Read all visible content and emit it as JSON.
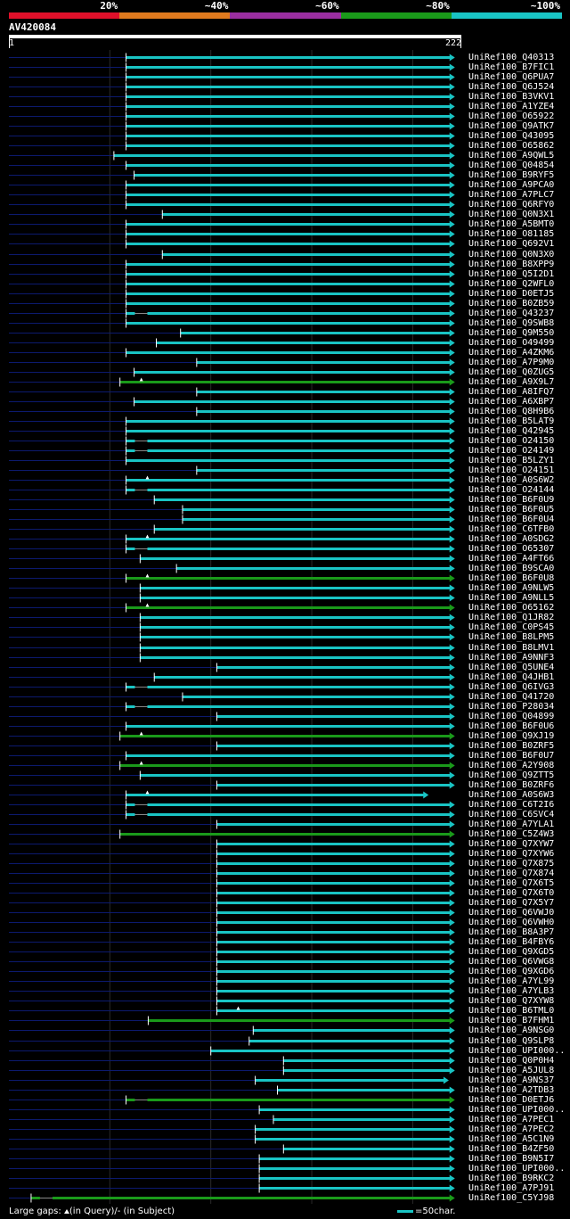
{
  "legend": {
    "labels": [
      "20%",
      "~40%",
      "~60%",
      "~80%",
      "~100%"
    ],
    "colors": [
      "#e0102a",
      "#e07a1e",
      "#9a2ea0",
      "#1a9a1a",
      "#19c4c4"
    ]
  },
  "query": {
    "id": "AV420084",
    "start": "1",
    "end": "222"
  },
  "footer": {
    "gaps_prefix": "Large gaps: ",
    "gaps_query": "(in Query)/",
    "gaps_dash": "-",
    "gaps_subject": " (in Subject)",
    "scale_label": "=50char."
  },
  "colors": {
    "cyan": "#19c4c4",
    "green": "#1a9a1a",
    "navy": "#0c1a6e",
    "background": "#000000"
  },
  "hits": [
    {
      "name": "UniRef100_Q40313",
      "start": 59,
      "end": 221,
      "color": "cyan"
    },
    {
      "name": "UniRef100_B7FIC1",
      "start": 59,
      "end": 221,
      "color": "cyan"
    },
    {
      "name": "UniRef100_Q6PUA7",
      "start": 59,
      "end": 221,
      "color": "cyan"
    },
    {
      "name": "UniRef100_Q6J524",
      "start": 59,
      "end": 221,
      "color": "cyan"
    },
    {
      "name": "UniRef100_B3VKV1",
      "start": 59,
      "end": 221,
      "color": "cyan"
    },
    {
      "name": "UniRef100_A1YZE4",
      "start": 59,
      "end": 221,
      "color": "cyan"
    },
    {
      "name": "UniRef100_O65922",
      "start": 59,
      "end": 221,
      "color": "cyan"
    },
    {
      "name": "UniRef100_Q9ATK7",
      "start": 59,
      "end": 221,
      "color": "cyan"
    },
    {
      "name": "UniRef100_Q43095",
      "start": 59,
      "end": 221,
      "color": "cyan"
    },
    {
      "name": "UniRef100_O65862",
      "start": 59,
      "end": 221,
      "color": "cyan"
    },
    {
      "name": "UniRef100_A9QWL5",
      "start": 53,
      "end": 221,
      "color": "cyan"
    },
    {
      "name": "UniRef100_Q04854",
      "start": 59,
      "end": 221,
      "color": "cyan"
    },
    {
      "name": "UniRef100_B9RYF5",
      "start": 63,
      "end": 221,
      "color": "cyan"
    },
    {
      "name": "UniRef100_A9PCA0",
      "start": 59,
      "end": 221,
      "color": "cyan"
    },
    {
      "name": "UniRef100_A7PLC7",
      "start": 59,
      "end": 221,
      "color": "cyan"
    },
    {
      "name": "UniRef100_Q6RFY0",
      "start": 59,
      "end": 221,
      "color": "cyan"
    },
    {
      "name": "UniRef100_Q0N3X1",
      "start": 77,
      "end": 221,
      "color": "cyan"
    },
    {
      "name": "UniRef100_A5BMT0",
      "start": 59,
      "end": 221,
      "color": "cyan"
    },
    {
      "name": "UniRef100_O81185",
      "start": 59,
      "end": 221,
      "color": "cyan"
    },
    {
      "name": "UniRef100_Q692V1",
      "start": 59,
      "end": 221,
      "color": "cyan"
    },
    {
      "name": "UniRef100_Q0N3X0",
      "start": 77,
      "end": 221,
      "color": "cyan"
    },
    {
      "name": "UniRef100_B8XPP9",
      "start": 59,
      "end": 221,
      "color": "cyan"
    },
    {
      "name": "UniRef100_Q5I2D1",
      "start": 59,
      "end": 221,
      "color": "cyan"
    },
    {
      "name": "UniRef100_Q2WFL0",
      "start": 59,
      "end": 221,
      "color": "cyan"
    },
    {
      "name": "UniRef100_D0ETJ5",
      "start": 59,
      "end": 221,
      "color": "cyan"
    },
    {
      "name": "UniRef100_B0ZB59",
      "start": 59,
      "end": 221,
      "color": "cyan"
    },
    {
      "name": "UniRef100_Q43237",
      "start": 59,
      "end": 221,
      "color": "cyan",
      "gap": true
    },
    {
      "name": "UniRef100_Q9SWB8",
      "start": 59,
      "end": 221,
      "color": "cyan"
    },
    {
      "name": "UniRef100_Q9M550",
      "start": 86,
      "end": 221,
      "color": "cyan"
    },
    {
      "name": "UniRef100_O49499",
      "start": 74,
      "end": 221,
      "color": "cyan"
    },
    {
      "name": "UniRef100_A4ZKM6",
      "start": 59,
      "end": 221,
      "color": "cyan"
    },
    {
      "name": "UniRef100_A7P9M0",
      "start": 94,
      "end": 221,
      "color": "cyan"
    },
    {
      "name": "UniRef100_Q0ZUG5",
      "start": 63,
      "end": 221,
      "color": "cyan"
    },
    {
      "name": "UniRef100_A9X9L7",
      "start": 56,
      "end": 221,
      "color": "green",
      "marker": true
    },
    {
      "name": "UniRef100_A8IFQ7",
      "start": 94,
      "end": 221,
      "color": "cyan"
    },
    {
      "name": "UniRef100_A6XBP7",
      "start": 63,
      "end": 221,
      "color": "cyan"
    },
    {
      "name": "UniRef100_Q8H9B6",
      "start": 94,
      "end": 221,
      "color": "cyan"
    },
    {
      "name": "UniRef100_B5LAT9",
      "start": 59,
      "end": 221,
      "color": "cyan"
    },
    {
      "name": "UniRef100_Q42945",
      "start": 59,
      "end": 221,
      "color": "cyan"
    },
    {
      "name": "UniRef100_O24150",
      "start": 59,
      "end": 221,
      "color": "cyan",
      "gap": true
    },
    {
      "name": "UniRef100_O24149",
      "start": 59,
      "end": 221,
      "color": "cyan",
      "gap": true
    },
    {
      "name": "UniRef100_B5LZY1",
      "start": 59,
      "end": 221,
      "color": "cyan"
    },
    {
      "name": "UniRef100_O24151",
      "start": 94,
      "end": 221,
      "color": "cyan"
    },
    {
      "name": "UniRef100_A0S6W2",
      "start": 59,
      "end": 221,
      "color": "cyan",
      "marker": true
    },
    {
      "name": "UniRef100_O24144",
      "start": 59,
      "end": 221,
      "color": "cyan",
      "gap": true
    },
    {
      "name": "UniRef100_B6F0U9",
      "start": 73,
      "end": 221,
      "color": "cyan"
    },
    {
      "name": "UniRef100_B6F0U5",
      "start": 87,
      "end": 221,
      "color": "cyan"
    },
    {
      "name": "UniRef100_B6F0U4",
      "start": 87,
      "end": 221,
      "color": "cyan"
    },
    {
      "name": "UniRef100_C6TFB0",
      "start": 73,
      "end": 221,
      "color": "cyan"
    },
    {
      "name": "UniRef100_A0SDG2",
      "start": 59,
      "end": 221,
      "color": "cyan",
      "marker": true
    },
    {
      "name": "UniRef100_O65307",
      "start": 59,
      "end": 221,
      "color": "cyan",
      "gap": true
    },
    {
      "name": "UniRef100_A4FT66",
      "start": 66,
      "end": 221,
      "color": "cyan"
    },
    {
      "name": "UniRef100_B9SCA0",
      "start": 84,
      "end": 221,
      "color": "cyan"
    },
    {
      "name": "UniRef100_B6F0U8",
      "start": 59,
      "end": 221,
      "color": "green",
      "marker": true
    },
    {
      "name": "UniRef100_A9NLW5",
      "start": 66,
      "end": 221,
      "color": "cyan"
    },
    {
      "name": "UniRef100_A9NLL5",
      "start": 66,
      "end": 221,
      "color": "cyan"
    },
    {
      "name": "UniRef100_O65162",
      "start": 59,
      "end": 221,
      "color": "green",
      "marker": true
    },
    {
      "name": "UniRef100_Q1JR82",
      "start": 66,
      "end": 221,
      "color": "cyan"
    },
    {
      "name": "UniRef100_C0PS45",
      "start": 66,
      "end": 221,
      "color": "cyan"
    },
    {
      "name": "UniRef100_B8LPM5",
      "start": 66,
      "end": 221,
      "color": "cyan"
    },
    {
      "name": "UniRef100_B8LMV1",
      "start": 66,
      "end": 221,
      "color": "cyan"
    },
    {
      "name": "UniRef100_A9NNF3",
      "start": 66,
      "end": 221,
      "color": "cyan"
    },
    {
      "name": "UniRef100_Q5UNE4",
      "start": 104,
      "end": 221,
      "color": "cyan"
    },
    {
      "name": "UniRef100_Q4JHB1",
      "start": 73,
      "end": 221,
      "color": "cyan"
    },
    {
      "name": "UniRef100_Q6IVG3",
      "start": 59,
      "end": 221,
      "color": "cyan",
      "gap": true
    },
    {
      "name": "UniRef100_Q41720",
      "start": 87,
      "end": 221,
      "color": "cyan"
    },
    {
      "name": "UniRef100_P28034",
      "start": 59,
      "end": 221,
      "color": "cyan",
      "gap": true
    },
    {
      "name": "UniRef100_Q04899",
      "start": 104,
      "end": 221,
      "color": "cyan"
    },
    {
      "name": "UniRef100_B6F0U6",
      "start": 59,
      "end": 221,
      "color": "cyan"
    },
    {
      "name": "UniRef100_Q9XJ19",
      "start": 56,
      "end": 221,
      "color": "green",
      "marker": true
    },
    {
      "name": "UniRef100_B0ZRF5",
      "start": 104,
      "end": 221,
      "color": "cyan"
    },
    {
      "name": "UniRef100_B6F0U7",
      "start": 59,
      "end": 221,
      "color": "cyan"
    },
    {
      "name": "UniRef100_A2Y908",
      "start": 56,
      "end": 221,
      "color": "green",
      "marker": true
    },
    {
      "name": "UniRef100_Q9ZTT5",
      "start": 66,
      "end": 221,
      "color": "cyan"
    },
    {
      "name": "UniRef100_B0ZRF6",
      "start": 104,
      "end": 221,
      "color": "cyan"
    },
    {
      "name": "UniRef100_A0S6W3",
      "start": 59,
      "end": 208,
      "color": "cyan",
      "marker": true
    },
    {
      "name": "UniRef100_C6T2I6",
      "start": 59,
      "end": 221,
      "color": "cyan",
      "gap": true
    },
    {
      "name": "UniRef100_C6SVC4",
      "start": 59,
      "end": 221,
      "color": "cyan",
      "gap": true
    },
    {
      "name": "UniRef100_A7YLA1",
      "start": 104,
      "end": 221,
      "color": "cyan"
    },
    {
      "name": "UniRef100_C5Z4W3",
      "start": 56,
      "end": 221,
      "color": "green"
    },
    {
      "name": "UniRef100_Q7XYW7",
      "start": 104,
      "end": 221,
      "color": "cyan"
    },
    {
      "name": "UniRef100_Q7XYW6",
      "start": 104,
      "end": 221,
      "color": "cyan"
    },
    {
      "name": "UniRef100_Q7X875",
      "start": 104,
      "end": 221,
      "color": "cyan"
    },
    {
      "name": "UniRef100_Q7X874",
      "start": 104,
      "end": 221,
      "color": "cyan"
    },
    {
      "name": "UniRef100_Q7X6T5",
      "start": 104,
      "end": 221,
      "color": "cyan"
    },
    {
      "name": "UniRef100_Q7X6T0",
      "start": 104,
      "end": 221,
      "color": "cyan"
    },
    {
      "name": "UniRef100_Q7X5Y7",
      "start": 104,
      "end": 221,
      "color": "cyan"
    },
    {
      "name": "UniRef100_Q6VWJ0",
      "start": 104,
      "end": 221,
      "color": "cyan"
    },
    {
      "name": "UniRef100_Q6VWH0",
      "start": 104,
      "end": 221,
      "color": "cyan"
    },
    {
      "name": "UniRef100_B8A3P7",
      "start": 104,
      "end": 221,
      "color": "cyan"
    },
    {
      "name": "UniRef100_B4FBY6",
      "start": 104,
      "end": 221,
      "color": "cyan"
    },
    {
      "name": "UniRef100_Q9XGD5",
      "start": 104,
      "end": 221,
      "color": "cyan"
    },
    {
      "name": "UniRef100_Q6VWG8",
      "start": 104,
      "end": 221,
      "color": "cyan"
    },
    {
      "name": "UniRef100_Q9XGD6",
      "start": 104,
      "end": 221,
      "color": "cyan"
    },
    {
      "name": "UniRef100_A7YL99",
      "start": 104,
      "end": 221,
      "color": "cyan"
    },
    {
      "name": "UniRef100_A7YLB3",
      "start": 104,
      "end": 221,
      "color": "cyan"
    },
    {
      "name": "UniRef100_Q7XYW8",
      "start": 104,
      "end": 221,
      "color": "cyan"
    },
    {
      "name": "UniRef100_B6TML0",
      "start": 104,
      "end": 221,
      "color": "cyan",
      "marker": true
    },
    {
      "name": "UniRef100_B7FHM1",
      "start": 70,
      "end": 221,
      "color": "green"
    },
    {
      "name": "UniRef100_A9NSG0",
      "start": 122,
      "end": 221,
      "color": "cyan"
    },
    {
      "name": "UniRef100_Q9SLP8",
      "start": 120,
      "end": 221,
      "color": "cyan"
    },
    {
      "name": "UniRef100_UPI000..",
      "start": 101,
      "end": 221,
      "color": "cyan"
    },
    {
      "name": "UniRef100_Q0P0H4",
      "start": 137,
      "end": 221,
      "color": "cyan"
    },
    {
      "name": "UniRef100_A5JUL8",
      "start": 137,
      "end": 221,
      "color": "cyan"
    },
    {
      "name": "UniRef100_A9NS37",
      "start": 123,
      "end": 218,
      "color": "cyan"
    },
    {
      "name": "UniRef100_A2TDB3",
      "start": 134,
      "end": 221,
      "color": "cyan"
    },
    {
      "name": "UniRef100_D0ETJ6",
      "start": 59,
      "end": 221,
      "color": "green",
      "gap": true
    },
    {
      "name": "UniRef100_UPI000..",
      "start": 125,
      "end": 221,
      "color": "cyan"
    },
    {
      "name": "UniRef100_A7PEC1",
      "start": 132,
      "end": 221,
      "color": "cyan"
    },
    {
      "name": "UniRef100_A7PEC2",
      "start": 123,
      "end": 221,
      "color": "cyan"
    },
    {
      "name": "UniRef100_A5C1N9",
      "start": 123,
      "end": 221,
      "color": "cyan"
    },
    {
      "name": "UniRef100_B4ZF50",
      "start": 137,
      "end": 221,
      "color": "cyan"
    },
    {
      "name": "UniRef100_B9N5I7",
      "start": 125,
      "end": 221,
      "color": "cyan"
    },
    {
      "name": "UniRef100_UPI000..",
      "start": 125,
      "end": 221,
      "color": "cyan"
    },
    {
      "name": "UniRef100_B9RKC2",
      "start": 125,
      "end": 221,
      "color": "cyan"
    },
    {
      "name": "UniRef100_A7PJ91",
      "start": 125,
      "end": 221,
      "color": "cyan"
    },
    {
      "name": "UniRef100_C5YJ98",
      "start": 12,
      "end": 221,
      "color": "green",
      "gap": true
    }
  ]
}
